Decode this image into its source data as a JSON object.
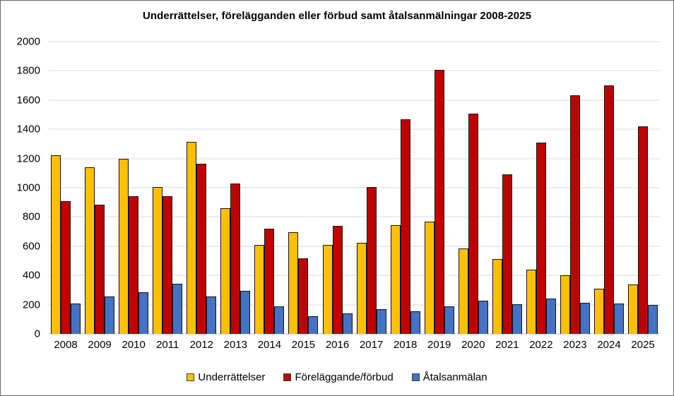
{
  "figure": {
    "background": "#FFFFFF",
    "border_color": "#666666"
  },
  "chart_data": {
    "type": "bar",
    "title": "Underrättelser, förelägganden eller förbud samt åtalsanmälningar 2008-2025",
    "categories": [
      "2008",
      "2009",
      "2010",
      "2011",
      "2012",
      "2013",
      "2014",
      "2015",
      "2016",
      "2017",
      "2018",
      "2019",
      "2020",
      "2021",
      "2022",
      "2023",
      "2024",
      "2025"
    ],
    "series": [
      {
        "name": "Underrättelser",
        "color": "#FFC000",
        "values": [
          1220,
          1140,
          1200,
          1005,
          1315,
          860,
          610,
          695,
          610,
          625,
          745,
          770,
          585,
          510,
          440,
          400,
          310,
          340
        ]
      },
      {
        "name": "Föreläggande/förbud",
        "color": "#C00000",
        "values": [
          910,
          885,
          940,
          940,
          1165,
          1030,
          720,
          515,
          740,
          1005,
          1470,
          1805,
          1505,
          1090,
          1310,
          1635,
          1700,
          1420
        ]
      },
      {
        "name": "Åtalsanmälan",
        "color": "#4472C4",
        "values": [
          210,
          255,
          285,
          345,
          255,
          295,
          190,
          120,
          140,
          170,
          155,
          190,
          225,
          205,
          240,
          215,
          210,
          200
        ]
      }
    ],
    "xlabel": "",
    "ylabel": "",
    "ylim": [
      0,
      2000
    ],
    "ytick_step": 200,
    "yticks": [
      0,
      200,
      400,
      600,
      800,
      1000,
      1200,
      1400,
      1600,
      1800,
      2000
    ],
    "grid": true,
    "gridline_color": "#D9D9D9",
    "axis_line_color": "#BFBFBF",
    "bar_outline_color": "#141414",
    "legend_position": "bottom"
  }
}
